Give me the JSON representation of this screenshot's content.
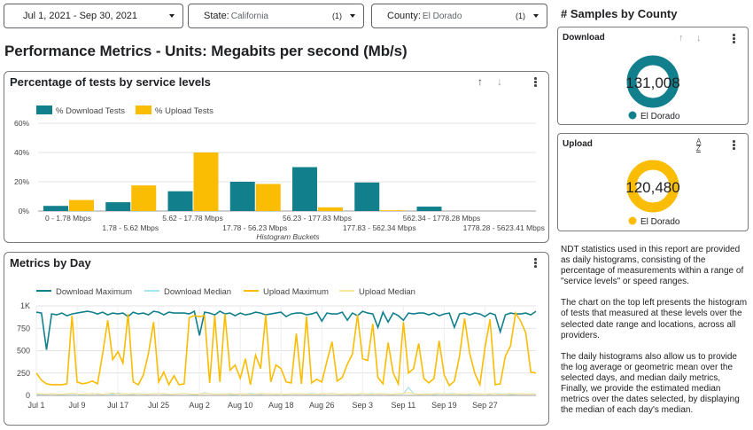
{
  "filters": {
    "date": {
      "label": "Jul 1, 2021 - Sep 30, 2021"
    },
    "state": {
      "label": "State:",
      "value": "California",
      "count": "(1)"
    },
    "county": {
      "label": "County:",
      "value": "El Dorado",
      "count": "(1)"
    }
  },
  "page_title": "Performance Metrics - Units: Megabits per second (Mb/s)",
  "histogram": {
    "title": "Percentage of tests by service levels",
    "legend": [
      {
        "name": "% Download Tests",
        "color": "#12808c"
      },
      {
        "name": "% Upload Tests",
        "color": "#fbbc04"
      }
    ],
    "y_ticks": [
      "60%",
      "40%",
      "20%",
      "0%"
    ],
    "x_label": "Histogram Buckets",
    "buckets": [
      "0 - 1.78 Mbps",
      "1.78 - 5.62 Mbps",
      "5.62 - 17.78 Mbps",
      "17.78 - 56.23 Mbps",
      "56.23 - 177.83 Mbps",
      "177.83 - 562.34 Mbps",
      "562.34 - 1778.28 Mbps",
      "1778.28 - 5623.41 Mbps"
    ]
  },
  "metrics_by_day": {
    "title": "Metrics by Day",
    "legend": [
      {
        "name": "Download Maximum",
        "color": "#12808c"
      },
      {
        "name": "Download Median",
        "color": "#a8e2ec"
      },
      {
        "name": "Upload Maximum",
        "color": "#fbbc04"
      },
      {
        "name": "Upload Median",
        "color": "#fde79a"
      }
    ],
    "y_ticks": [
      "1K",
      "750",
      "500",
      "250",
      "0"
    ],
    "x_ticks": [
      "Jul 1",
      "Jul 9",
      "Jul 17",
      "Jul 25",
      "Aug 2",
      "Aug 10",
      "Aug 18",
      "Aug 26",
      "Sep 3",
      "Sep 11",
      "Sep 19",
      "Sep 27"
    ]
  },
  "samples": {
    "title": "# Samples by County",
    "download": {
      "title": "Download",
      "value": "131,008",
      "county": "El Dorado",
      "color": "#12808c"
    },
    "upload": {
      "title": "Upload",
      "value": "120,480",
      "county": "El Dorado",
      "color": "#fbbc04"
    }
  },
  "description": [
    "NDT statistics used in this report are provided as daily histograms, consisting of the percentage of measurements within a range of \"service levels\" or speed ranges.",
    "The chart on the top left presents the histogram of tests that measured at these levels over the selected date range and locations, across all providers.",
    "The daily histograms also allow us to provide the log average or geometric mean over the selected days, and median daily metrics, Finally, we provide the estimated median metrics over the dates selected, by displaying the median of each day's median."
  ],
  "chart_data": [
    {
      "type": "bar",
      "title": "Percentage of tests by service levels",
      "xlabel": "Histogram Buckets",
      "ylabel": "",
      "ylim": [
        0,
        60
      ],
      "categories": [
        "0 - 1.78 Mbps",
        "1.78 - 5.62 Mbps",
        "5.62 - 17.78 Mbps",
        "17.78 - 56.23 Mbps",
        "56.23 - 177.83 Mbps",
        "177.83 - 562.34 Mbps",
        "562.34 - 1778.28 Mbps",
        "1778.28 - 5623.41 Mbps"
      ],
      "series": [
        {
          "name": "% Download Tests",
          "values": [
            3.5,
            6,
            13.5,
            20,
            30,
            19.5,
            3,
            0
          ]
        },
        {
          "name": "% Upload Tests",
          "values": [
            7.5,
            17.5,
            40,
            18.5,
            2.5,
            0.5,
            0,
            0
          ]
        }
      ],
      "grid": true,
      "legend": "top-left"
    },
    {
      "type": "line",
      "title": "Metrics by Day",
      "ylim": [
        0,
        1000
      ],
      "x_ticks": [
        "Jul 1",
        "Jul 9",
        "Jul 17",
        "Jul 25",
        "Aug 2",
        "Aug 10",
        "Aug 18",
        "Aug 26",
        "Sep 3",
        "Sep 11",
        "Sep 19",
        "Sep 27"
      ],
      "x_start": "2021-07-01",
      "series": [
        {
          "name": "Download Maximum",
          "values": [
            930,
            920,
            510,
            910,
            900,
            920,
            890,
            910,
            920,
            930,
            940,
            930,
            910,
            930,
            900,
            920,
            910,
            920,
            880,
            930,
            910,
            920,
            900,
            940,
            930,
            900,
            930,
            920,
            920,
            920,
            910,
            940,
            670,
            930,
            920,
            900,
            940,
            910,
            920,
            890,
            920,
            900,
            910,
            930,
            920,
            900,
            910,
            920,
            930,
            880,
            910,
            920,
            920,
            900,
            910,
            930,
            830,
            920,
            910,
            910,
            930,
            840,
            920,
            890,
            940,
            920,
            910,
            760,
            930,
            820,
            920,
            890,
            840,
            920,
            910,
            920,
            920,
            900,
            920,
            890,
            910,
            920,
            760,
            910,
            920,
            900,
            920,
            910,
            880,
            920,
            900,
            710,
            900,
            920,
            910,
            910,
            920,
            900,
            940
          ]
        },
        {
          "name": "Download Median",
          "values": [
            10,
            15,
            12,
            18,
            14,
            10,
            16,
            20,
            14,
            12,
            18,
            22,
            15,
            12,
            20,
            15,
            25,
            18,
            14,
            12,
            22,
            16,
            14,
            18,
            20,
            15,
            12,
            16,
            18,
            22,
            15,
            12,
            14,
            30,
            20,
            15,
            18,
            20,
            14,
            12,
            16,
            18,
            22,
            15,
            12,
            20,
            18,
            14,
            16,
            12,
            20,
            15,
            18,
            14,
            22,
            16,
            12,
            18,
            25,
            15,
            14,
            20,
            16,
            12,
            18,
            15,
            22,
            14,
            18,
            16,
            12,
            20,
            15,
            90,
            20,
            14,
            16,
            18,
            12,
            20,
            15,
            18,
            22,
            14,
            16,
            12,
            20,
            18,
            15,
            14,
            22,
            16,
            18,
            12,
            14,
            20,
            15,
            18,
            16
          ]
        },
        {
          "name": "Upload Maximum",
          "values": [
            250,
            170,
            130,
            120,
            120,
            120,
            130,
            890,
            150,
            130,
            140,
            160,
            130,
            460,
            840,
            400,
            490,
            360,
            910,
            150,
            120,
            230,
            470,
            820,
            150,
            260,
            120,
            220,
            120,
            130,
            870,
            890,
            880,
            890,
            140,
            890,
            150,
            910,
            280,
            340,
            190,
            410,
            120,
            450,
            300,
            900,
            150,
            340,
            300,
            150,
            140,
            690,
            130,
            880,
            140,
            180,
            150,
            380,
            600,
            160,
            200,
            350,
            460,
            900,
            410,
            390,
            800,
            200,
            130,
            590,
            250,
            130,
            820,
            250,
            300,
            580,
            190,
            140,
            190,
            610,
            230,
            110,
            160,
            440,
            860,
            470,
            250,
            120,
            530,
            850,
            120,
            130,
            440,
            550,
            920,
            830,
            700,
            260,
            250
          ]
        },
        {
          "name": "Upload Median",
          "values": [
            20,
            18,
            15,
            22,
            16,
            14,
            20,
            25,
            18,
            15,
            20,
            16,
            22,
            14,
            18,
            30,
            16,
            20,
            15,
            22,
            18,
            14,
            16,
            20,
            18,
            22,
            15,
            14,
            20,
            25,
            18,
            16,
            15,
            22,
            20,
            14,
            18,
            16,
            22,
            15,
            20,
            18,
            14,
            16,
            22,
            20,
            15,
            18,
            16,
            14,
            22,
            18,
            20,
            15,
            16,
            14,
            20,
            18,
            22,
            15,
            16,
            20,
            14,
            18,
            22,
            16,
            15,
            20,
            18,
            14,
            16,
            22,
            20,
            35,
            18,
            15,
            16,
            14,
            20,
            22,
            18,
            15,
            16,
            20,
            14,
            18,
            22,
            16,
            15,
            20,
            18,
            14,
            16,
            22,
            18,
            20,
            15,
            16,
            18
          ]
        }
      ],
      "grid": true,
      "legend": "top"
    },
    {
      "type": "pie",
      "title": "Download",
      "categories": [
        "El Dorado"
      ],
      "values": [
        131008
      ]
    },
    {
      "type": "pie",
      "title": "Upload",
      "categories": [
        "El Dorado"
      ],
      "values": [
        120480
      ]
    }
  ]
}
